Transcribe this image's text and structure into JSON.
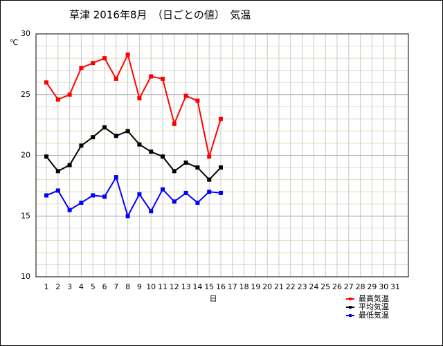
{
  "chart_data": {
    "type": "line",
    "title": "草津  2016年8月　（日ごとの値）　気温",
    "y_label": "℃",
    "x_label": "日",
    "categories": [
      "1",
      "2",
      "3",
      "4",
      "5",
      "6",
      "7",
      "8",
      "9",
      "10",
      "11",
      "12",
      "13",
      "14",
      "15",
      "16",
      "17",
      "18",
      "19",
      "20",
      "21",
      "22",
      "23",
      "24",
      "25",
      "26",
      "27",
      "28",
      "29",
      "30",
      "31"
    ],
    "series": [
      {
        "name": "最高気温",
        "color": "#ff0000",
        "values": [
          26.0,
          24.6,
          25.0,
          27.2,
          27.6,
          28.0,
          26.3,
          28.3,
          24.7,
          26.5,
          26.3,
          22.6,
          24.9,
          24.5,
          19.9,
          23.0,
          null,
          null,
          null,
          null,
          null,
          null,
          null,
          null,
          null,
          null,
          null,
          null,
          null,
          null,
          null
        ]
      },
      {
        "name": "平均気温",
        "color": "#000000",
        "values": [
          19.9,
          18.7,
          19.2,
          20.8,
          21.5,
          22.3,
          21.6,
          22.0,
          20.9,
          20.3,
          19.9,
          18.7,
          19.4,
          19.0,
          18.0,
          19.0,
          null,
          null,
          null,
          null,
          null,
          null,
          null,
          null,
          null,
          null,
          null,
          null,
          null,
          null,
          null
        ]
      },
      {
        "name": "最低気温",
        "color": "#0000ff",
        "values": [
          16.7,
          17.1,
          15.5,
          16.1,
          16.7,
          16.6,
          18.2,
          15.0,
          16.8,
          15.4,
          17.2,
          16.2,
          16.9,
          16.1,
          17.0,
          16.9,
          null,
          null,
          null,
          null,
          null,
          null,
          null,
          null,
          null,
          null,
          null,
          null,
          null,
          null,
          null
        ]
      }
    ],
    "ylim": [
      10,
      30
    ],
    "yticks": [
      10,
      15,
      20,
      25,
      30
    ],
    "minor_yticks": [
      11,
      12,
      13,
      14,
      16,
      17,
      18,
      19,
      21,
      22,
      23,
      24,
      26,
      27,
      28,
      29
    ],
    "grid": true,
    "legend": "bottom-right"
  }
}
